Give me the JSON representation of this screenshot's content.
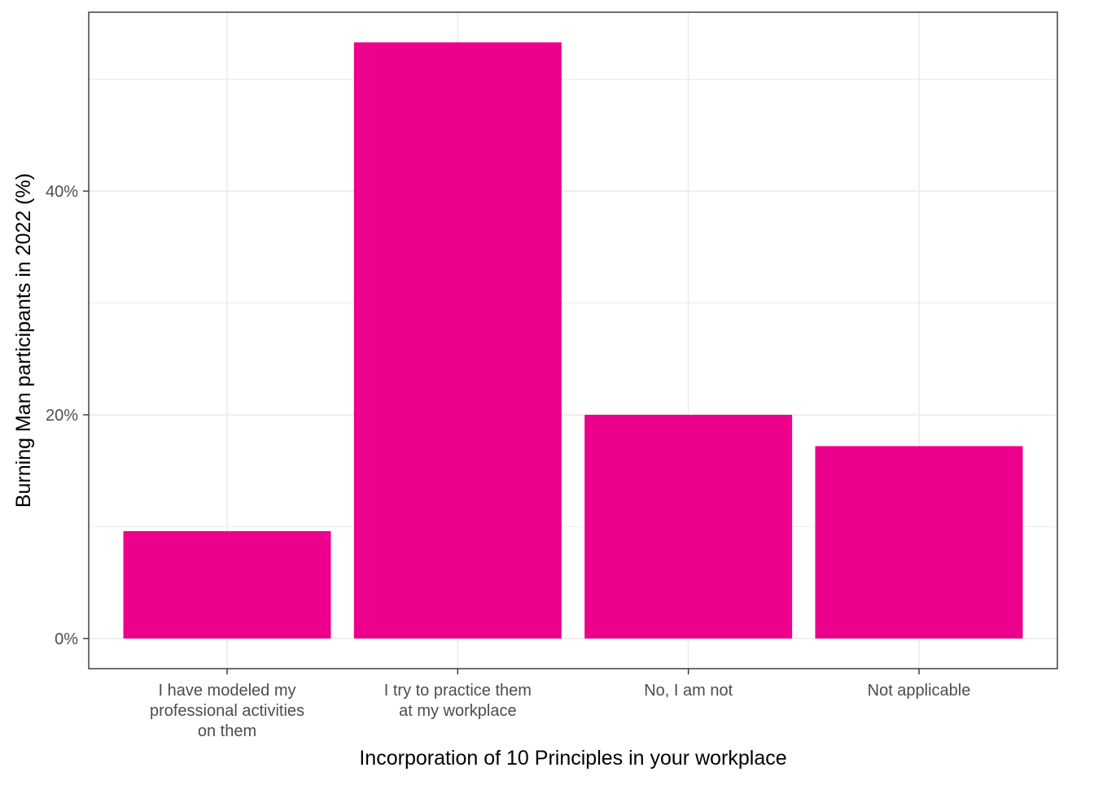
{
  "chart_data": {
    "type": "bar",
    "xlabel": "Incorporation of 10 Principles in your workplace",
    "ylabel": "Burning Man participants in 2022 (%)",
    "categories": [
      [
        "I have modeled my",
        "professional activities",
        "on them"
      ],
      [
        "I try to practice them",
        "at my workplace"
      ],
      [
        "No, I am not"
      ],
      [
        "Not applicable"
      ]
    ],
    "values": [
      9.6,
      53.3,
      20.0,
      17.2
    ],
    "ylim": [
      -2.7,
      56.0
    ],
    "y_ticks": [
      {
        "value": 0,
        "label": "0%"
      },
      {
        "value": 20,
        "label": "20%"
      },
      {
        "value": 40,
        "label": "40%"
      }
    ],
    "y_minor_ticks": [
      10,
      30,
      50
    ],
    "grid": true,
    "bar_color": "#EC008C",
    "grid_color": "#ebebeb",
    "panel_border_color": "#333333"
  }
}
